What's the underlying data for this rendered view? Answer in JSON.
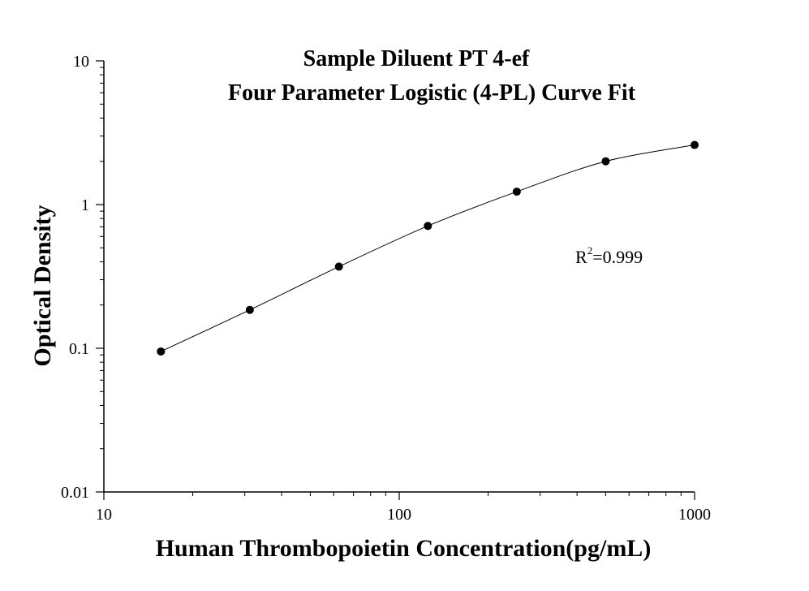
{
  "chart_data": {
    "type": "scatter",
    "title": "Sample Diluent PT 4-ef",
    "subtitle": "Four Parameter Logistic (4-PL) Curve Fit",
    "xlabel": "Human Thrombopoietin Concentration(pg/mL)",
    "ylabel": "Optical Density",
    "xscale": "log",
    "yscale": "log",
    "xlim": [
      10,
      1000
    ],
    "ylim": [
      0.01,
      10
    ],
    "xticks": [
      "10",
      "100",
      "1000"
    ],
    "yticks": [
      "0.01",
      "0.1",
      "1",
      "10"
    ],
    "grid": false,
    "fit_curve": true,
    "annotation": {
      "base": "R",
      "sup": "2",
      "rest": "=0.999"
    },
    "series": [
      {
        "x": [
          15.6,
          31.2,
          62.5,
          125,
          250,
          500,
          1000
        ],
        "y": [
          0.095,
          0.185,
          0.37,
          0.71,
          1.23,
          2.0,
          2.6
        ]
      }
    ]
  }
}
